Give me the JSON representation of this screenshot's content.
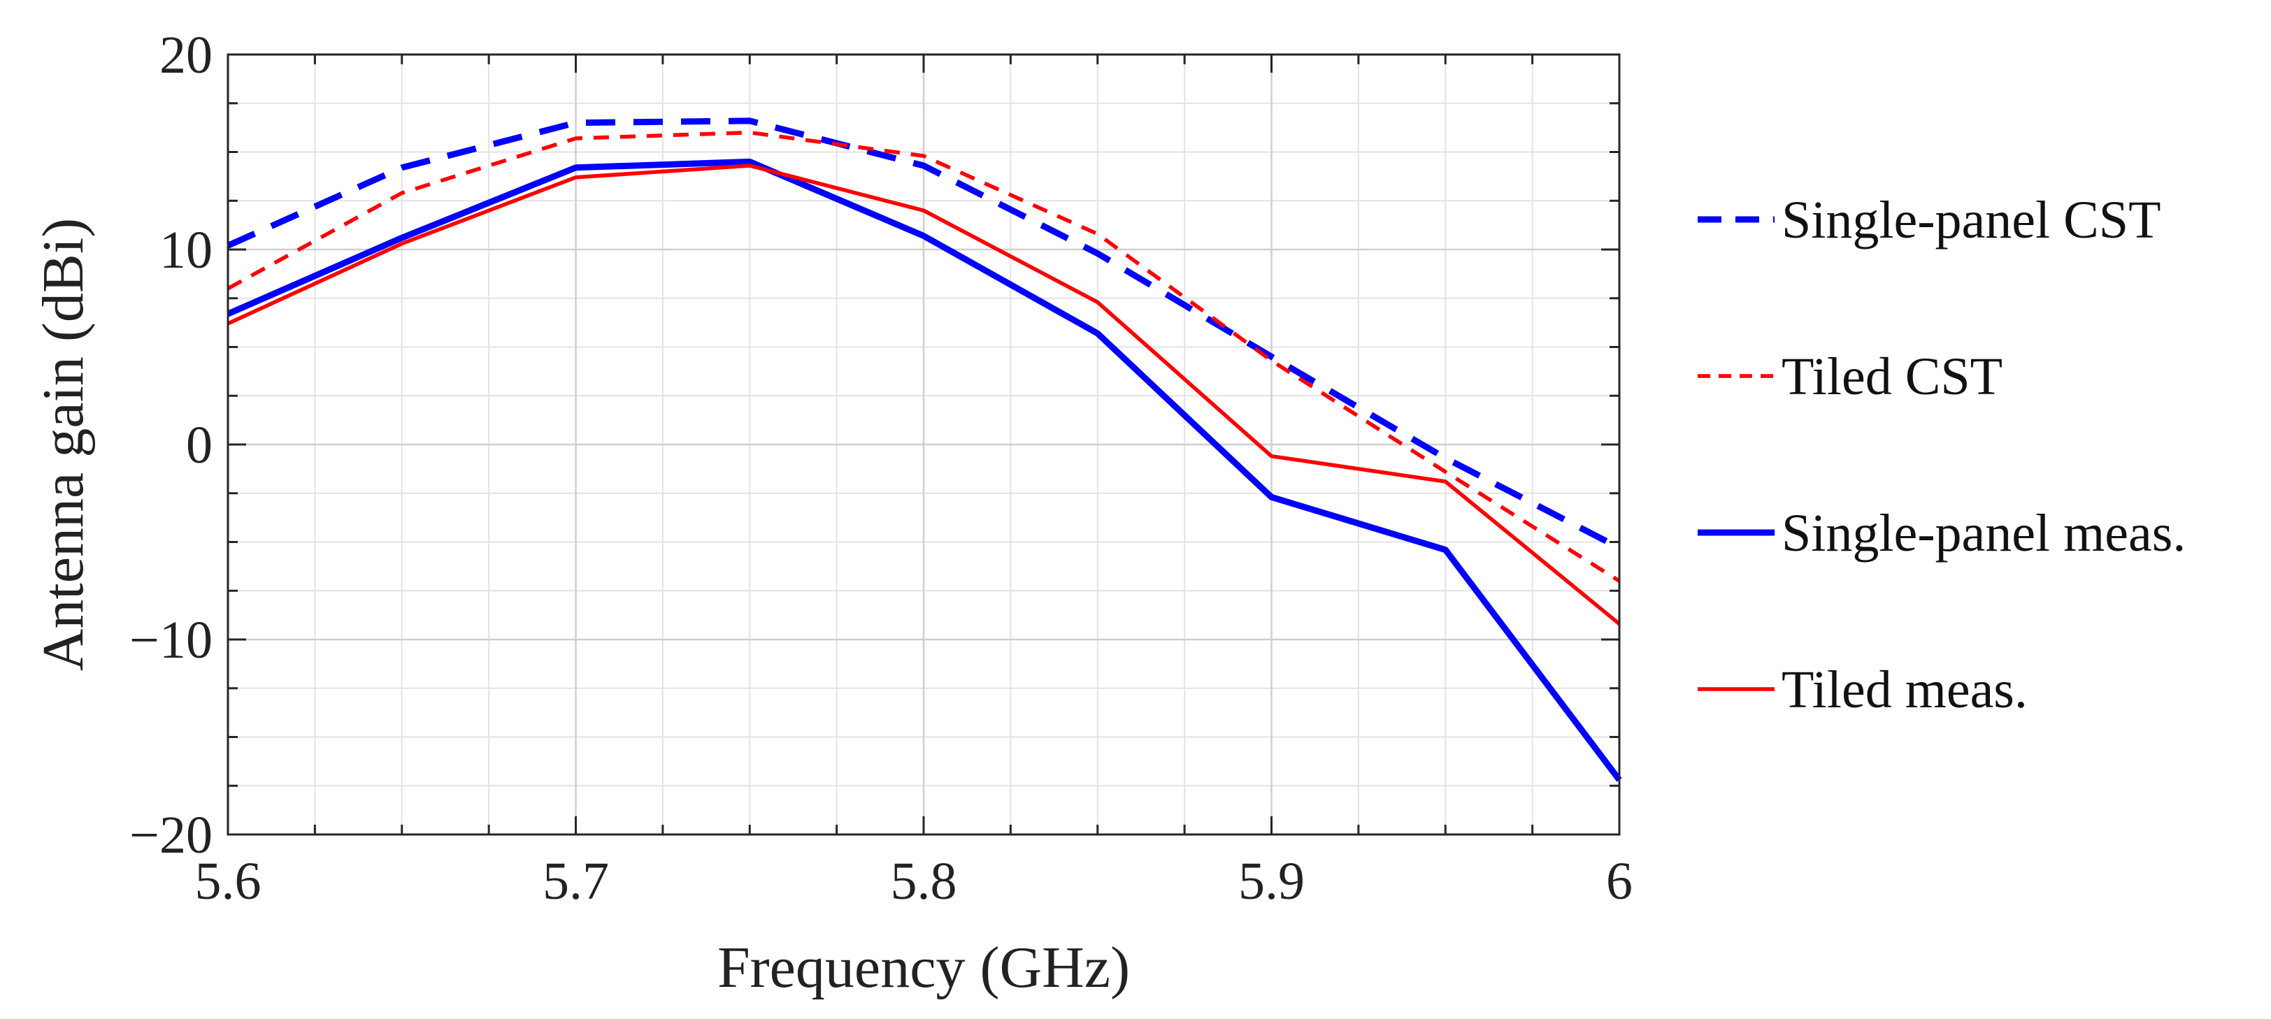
{
  "chart_data": {
    "type": "line",
    "title": "",
    "xlabel": "Frequency (GHz)",
    "ylabel": "Antenna gain (dBi)",
    "xlim": [
      5.6,
      6.0
    ],
    "ylim": [
      -20,
      20
    ],
    "x_ticks": [
      5.6,
      5.7,
      5.8,
      5.9,
      6.0
    ],
    "x_tick_labels": [
      "5.6",
      "5.7",
      "5.8",
      "5.9",
      "6"
    ],
    "y_ticks": [
      -20,
      -10,
      0,
      10,
      20
    ],
    "y_tick_labels": [
      "−20",
      "−10",
      "0",
      "10",
      "20"
    ],
    "grid": true,
    "minor_grid": true,
    "legend_position": "right, outside plot area",
    "x": [
      5.6,
      5.65,
      5.7,
      5.75,
      5.8,
      5.85,
      5.9,
      5.95,
      6.0
    ],
    "series": [
      {
        "name": "Single-panel CST",
        "color": "#0000ff",
        "style": "dashed-thick",
        "values": [
          10.2,
          14.2,
          16.5,
          16.6,
          14.3,
          9.8,
          4.5,
          -0.7,
          -5.3
        ]
      },
      {
        "name": "Tiled CST",
        "color": "#ff0000",
        "style": "dashed-thin",
        "values": [
          8.0,
          12.9,
          15.7,
          16.0,
          14.8,
          10.8,
          4.3,
          -1.4,
          -7.0
        ]
      },
      {
        "name": "Single-panel meas.",
        "color": "#0000ff",
        "style": "solid-thick",
        "values": [
          6.7,
          10.6,
          14.2,
          14.5,
          10.7,
          5.7,
          -2.7,
          -5.4,
          -17.2
        ]
      },
      {
        "name": "Tiled meas.",
        "color": "#ff0000",
        "style": "solid-thin",
        "values": [
          6.2,
          10.3,
          13.7,
          14.3,
          12.0,
          7.3,
          -0.6,
          -1.9,
          -9.2
        ]
      }
    ]
  }
}
